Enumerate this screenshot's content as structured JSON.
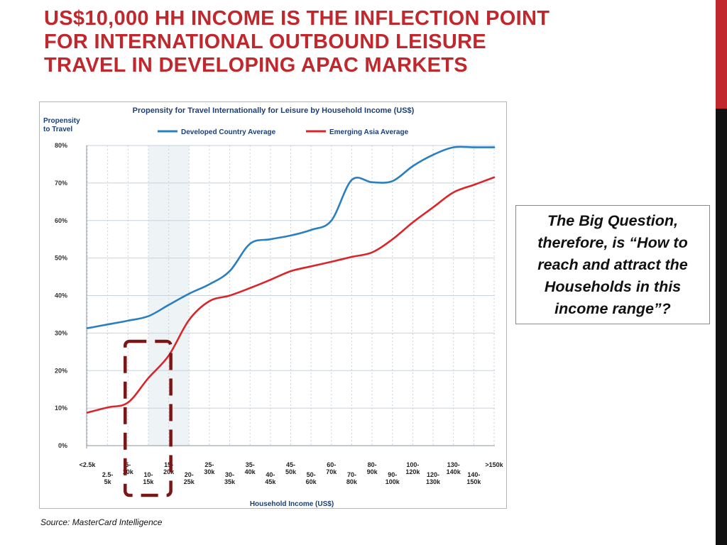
{
  "slide": {
    "title_lines": [
      "US$10,000 HH INCOME IS THE INFLECTION POINT",
      "FOR INTERNATIONAL OUTBOUND LEISURE",
      "TRAVEL IN DEVELOPING APAC MARKETS"
    ],
    "callout_lines": [
      "The Big Question,",
      "therefore, is “How to",
      "reach and attract the",
      "Households in this",
      "income range”?"
    ],
    "source": "Source: MasterCard Intelligence"
  },
  "colors": {
    "title": "#c0282d",
    "developed": "#2a7fc0",
    "emerging": "#d9262b",
    "highlight_box": "#7a1616",
    "shaded_band": "#eef3f6",
    "grid": "#c9d2dc"
  },
  "chart_data": {
    "type": "line",
    "title": "Propensity for Travel Internationally for Leisure by Household Income (US$)",
    "ylabel_lines": [
      "Propensity",
      "to Travel"
    ],
    "xlabel": "Household Income (US$)",
    "legend_position": "top",
    "grid": true,
    "ylim": [
      0,
      80
    ],
    "yticks": [
      0,
      10,
      20,
      30,
      40,
      50,
      60,
      70,
      80
    ],
    "ytick_labels": [
      "0%",
      "10%",
      "20%",
      "30%",
      "40%",
      "50%",
      "60%",
      "70%",
      "80%"
    ],
    "categories": [
      "<2.5k",
      "2.5-5k",
      "5-10k",
      "10-15k",
      "15-20k",
      "20-25k",
      "25-30k",
      "30-35k",
      "35-40k",
      "40-45k",
      "45-50k",
      "50-60k",
      "60-70k",
      "70-80k",
      "80-90k",
      "90-100k",
      "100-120k",
      "120-130k",
      "130-140k",
      "140-150k",
      ">150k"
    ],
    "category_label_lines": [
      [
        "<2.5k"
      ],
      [
        "2.5-",
        "5k"
      ],
      [
        "5-",
        "10k"
      ],
      [
        "10-",
        "15k"
      ],
      [
        "15-",
        "20k"
      ],
      [
        "20-",
        "25k"
      ],
      [
        "25-",
        "30k"
      ],
      [
        "30-",
        "35k"
      ],
      [
        "35-",
        "40k"
      ],
      [
        "40-",
        "45k"
      ],
      [
        "45-",
        "50k"
      ],
      [
        "50-",
        "60k"
      ],
      [
        "60-",
        "70k"
      ],
      [
        "70-",
        "80k"
      ],
      [
        "80-",
        "90k"
      ],
      [
        "90-",
        "100k"
      ],
      [
        "100-",
        "120k"
      ],
      [
        "120-",
        "130k"
      ],
      [
        "130-",
        "140k"
      ],
      [
        "140-",
        "150k"
      ],
      [
        ">150k"
      ]
    ],
    "shaded_range": [
      "10-15k",
      "20-25k"
    ],
    "highlight_range": [
      "5-10k",
      "15-20k"
    ],
    "series": [
      {
        "name": "Developed Country Average",
        "color": "#2a7fc0",
        "values": [
          31.3,
          32.3,
          33.3,
          34.5,
          37.5,
          40.5,
          43.0,
          46.5,
          53.8,
          55.0,
          56.0,
          57.5,
          60.0,
          70.8,
          70.2,
          70.5,
          74.5,
          77.5,
          79.5,
          79.5,
          79.5
        ]
      },
      {
        "name": "Emerging Asia Average",
        "color": "#d9262b",
        "values": [
          8.8,
          10.2,
          11.5,
          18.0,
          24.0,
          33.5,
          38.5,
          40.0,
          42.0,
          44.2,
          46.5,
          47.8,
          49.0,
          50.3,
          51.5,
          55.0,
          59.5,
          63.5,
          67.5,
          69.5,
          71.5
        ]
      }
    ]
  }
}
